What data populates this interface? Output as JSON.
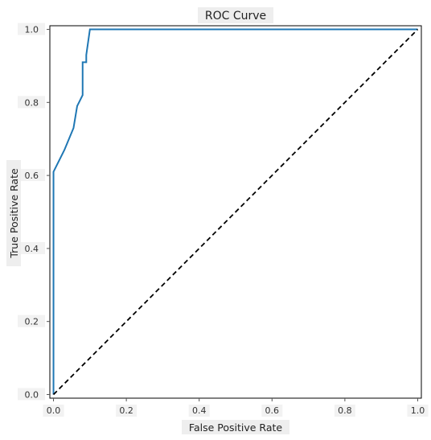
{
  "chart_data": {
    "type": "line",
    "title": "ROC Curve",
    "xlabel": "False Positive Rate",
    "ylabel": "True Positive Rate",
    "xlim": [
      -0.01,
      1.01
    ],
    "ylim": [
      -0.01,
      1.01
    ],
    "x_ticks": [
      0.0,
      0.2,
      0.4,
      0.6,
      0.8,
      1.0
    ],
    "x_tick_labels": [
      "0.0",
      "0.2",
      "0.4",
      "0.6",
      "0.8",
      "1.0"
    ],
    "y_ticks": [
      0.0,
      0.2,
      0.4,
      0.6,
      0.8,
      1.0
    ],
    "y_tick_labels": [
      "0.0",
      "0.2",
      "0.4",
      "0.6",
      "0.8",
      "1.0"
    ],
    "grid": false,
    "series": [
      {
        "color": "#1f77b4",
        "style": "solid",
        "x": [
          0.0,
          0.0,
          0.0,
          0.03,
          0.03,
          0.055,
          0.065,
          0.08,
          0.08,
          0.09,
          0.09,
          0.1,
          1.0
        ],
        "y": [
          0.0,
          0.0,
          0.61,
          0.67,
          0.67,
          0.73,
          0.79,
          0.82,
          0.91,
          0.91,
          0.93,
          1.0,
          1.0
        ]
      },
      {
        "color": "#000000",
        "style": "dashed",
        "x": [
          0.0,
          1.0
        ],
        "y": [
          0.0,
          1.0
        ]
      }
    ]
  }
}
